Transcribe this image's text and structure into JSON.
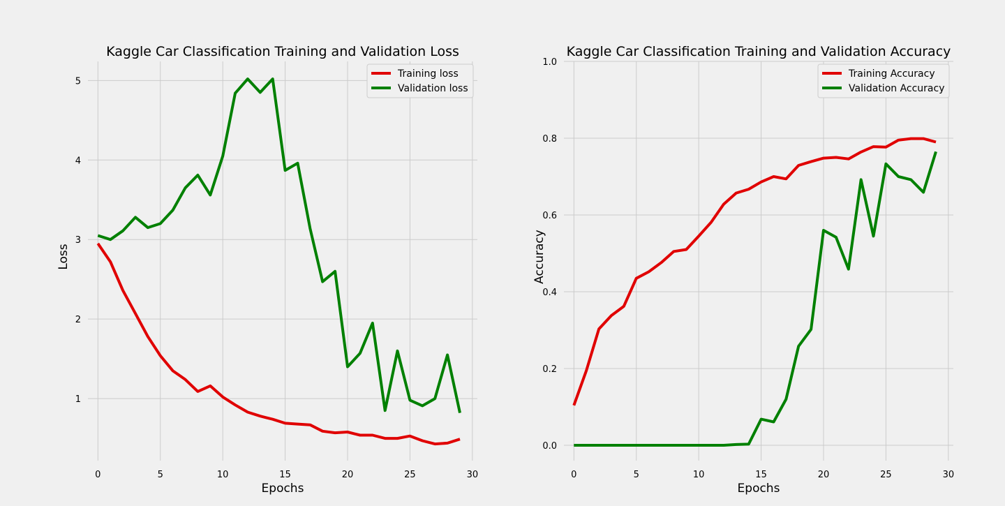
{
  "chart_data": [
    {
      "type": "line",
      "id": "loss",
      "title": "Kaggle Car Classification Training and Validation Loss",
      "xlabel": "Epochs",
      "ylabel": "Loss",
      "xlim": [
        -0.8,
        30.4
      ],
      "ylim": [
        0.22,
        5.24
      ],
      "xticks": [
        0,
        5,
        10,
        15,
        20,
        25,
        30
      ],
      "yticks": [
        1,
        2,
        3,
        4,
        5
      ],
      "grid": true,
      "legend_position": "top-right",
      "x": [
        0,
        1,
        2,
        3,
        4,
        5,
        6,
        7,
        8,
        9,
        10,
        11,
        12,
        13,
        14,
        15,
        16,
        17,
        18,
        19,
        20,
        21,
        22,
        23,
        24,
        25,
        26,
        27,
        28,
        29
      ],
      "series": [
        {
          "name": "Training loss",
          "color": "#e00000",
          "values": [
            2.95,
            2.72,
            2.36,
            2.07,
            1.78,
            1.54,
            1.35,
            1.24,
            1.09,
            1.16,
            1.02,
            0.92,
            0.83,
            0.78,
            0.74,
            0.69,
            0.68,
            0.67,
            0.59,
            0.57,
            0.58,
            0.54,
            0.54,
            0.5,
            0.5,
            0.53,
            0.47,
            0.43,
            0.44,
            0.49
          ]
        },
        {
          "name": "Validation loss",
          "color": "#008000",
          "values": [
            3.05,
            3.0,
            3.11,
            3.28,
            3.15,
            3.2,
            3.37,
            3.65,
            3.81,
            3.56,
            4.05,
            4.84,
            5.02,
            4.85,
            5.02,
            3.87,
            3.96,
            3.14,
            2.47,
            2.6,
            1.4,
            1.57,
            1.95,
            0.85,
            1.6,
            0.98,
            0.91,
            1.0,
            1.55,
            0.82
          ]
        }
      ]
    },
    {
      "type": "line",
      "id": "accuracy",
      "title": "Kaggle Car Classification Training and Validation Accuracy",
      "xlabel": "Epochs",
      "ylabel": "Accuracy",
      "xlim": [
        -0.8,
        30.4
      ],
      "ylim": [
        -0.04,
        1.0
      ],
      "xticks": [
        0,
        5,
        10,
        15,
        20,
        25,
        30
      ],
      "yticks": [
        0.0,
        0.2,
        0.4,
        0.6,
        0.8,
        1.0
      ],
      "grid": true,
      "legend_position": "top-right",
      "x": [
        0,
        1,
        2,
        3,
        4,
        5,
        6,
        7,
        8,
        9,
        10,
        11,
        12,
        13,
        14,
        15,
        16,
        17,
        18,
        19,
        20,
        21,
        22,
        23,
        24,
        25,
        26,
        27,
        28,
        29
      ],
      "series": [
        {
          "name": "Training Accuracy",
          "color": "#e00000",
          "values": [
            0.104,
            0.195,
            0.303,
            0.338,
            0.362,
            0.435,
            0.452,
            0.476,
            0.505,
            0.51,
            0.545,
            0.581,
            0.628,
            0.657,
            0.667,
            0.686,
            0.7,
            0.694,
            0.729,
            0.739,
            0.748,
            0.75,
            0.746,
            0.764,
            0.778,
            0.777,
            0.795,
            0.799,
            0.799,
            0.79
          ]
        },
        {
          "name": "Validation Accuracy",
          "color": "#008000",
          "values": [
            0.0,
            0.0,
            0.0,
            0.0,
            0.0,
            0.0,
            0.0,
            0.0,
            0.0,
            0.0,
            0.0,
            0.0,
            0.0,
            0.002,
            0.003,
            0.068,
            0.061,
            0.12,
            0.258,
            0.302,
            0.56,
            0.542,
            0.459,
            0.692,
            0.545,
            0.733,
            0.7,
            0.692,
            0.659,
            0.765
          ]
        }
      ]
    }
  ]
}
